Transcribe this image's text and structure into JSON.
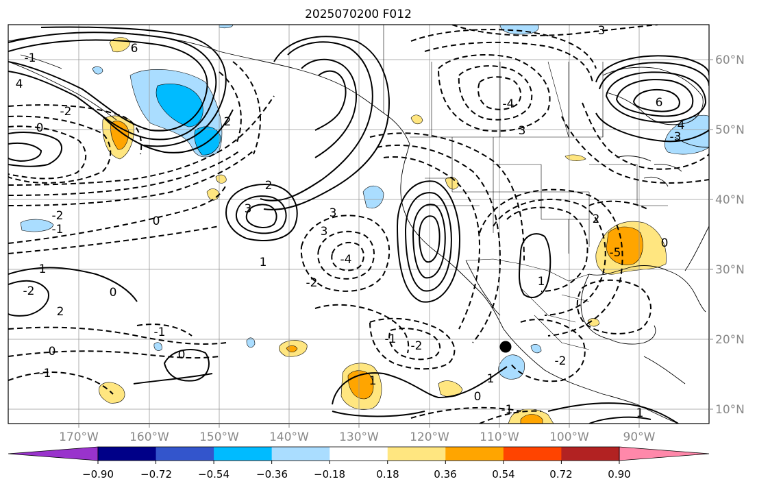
{
  "title": "2025070200 F012",
  "map": {
    "lon_labels": [
      "170°W",
      "160°W",
      "150°W",
      "140°W",
      "130°W",
      "120°W",
      "110°W",
      "100°W",
      "90°W"
    ],
    "lat_labels": [
      "60°N",
      "50°N",
      "40°N",
      "30°N",
      "20°N",
      "10°N"
    ],
    "grid": true,
    "line_color": "#000000"
  },
  "colorbar": {
    "tick_labels": [
      "−0.90",
      "−0.72",
      "−0.54",
      "−0.36",
      "−0.18",
      "0.18",
      "0.36",
      "0.54",
      "0.72",
      "0.90"
    ],
    "colors": [
      "#9933cc",
      "#000088",
      "#3355cc",
      "#00bbff",
      "#aaddff",
      "#ffffff",
      "#ffe680",
      "#ffa500",
      "#ff4400",
      "#b22222",
      "#ff88aa"
    ],
    "extend": "both"
  },
  "contour_labels": {
    "a": "-3",
    "b": "6",
    "c": "-2",
    "d": "-1",
    "e": "0",
    "f": "4",
    "g": "-4",
    "h": "3",
    "i": "-3",
    "j": "6",
    "k": "4",
    "l": "3",
    "m": "1",
    "n": "-2",
    "o": "2",
    "p": "3",
    "q": "-2",
    "r": "-1",
    "s": "0",
    "t": "3",
    "u": "-4",
    "v": "2",
    "w": "-2",
    "x": "0",
    "y": "1",
    "z": "-1",
    "aa": "2",
    "ab": "-2",
    "ac": "1",
    "ad": "-1",
    "ae": "0",
    "af": "1",
    "ag": "0",
    "ah": "-1",
    "ai": "-2",
    "aj": "1",
    "ak": "-1",
    "al": "0",
    "am": "1",
    "an": "-5",
    "ao": "0",
    "ap": "2"
  }
}
